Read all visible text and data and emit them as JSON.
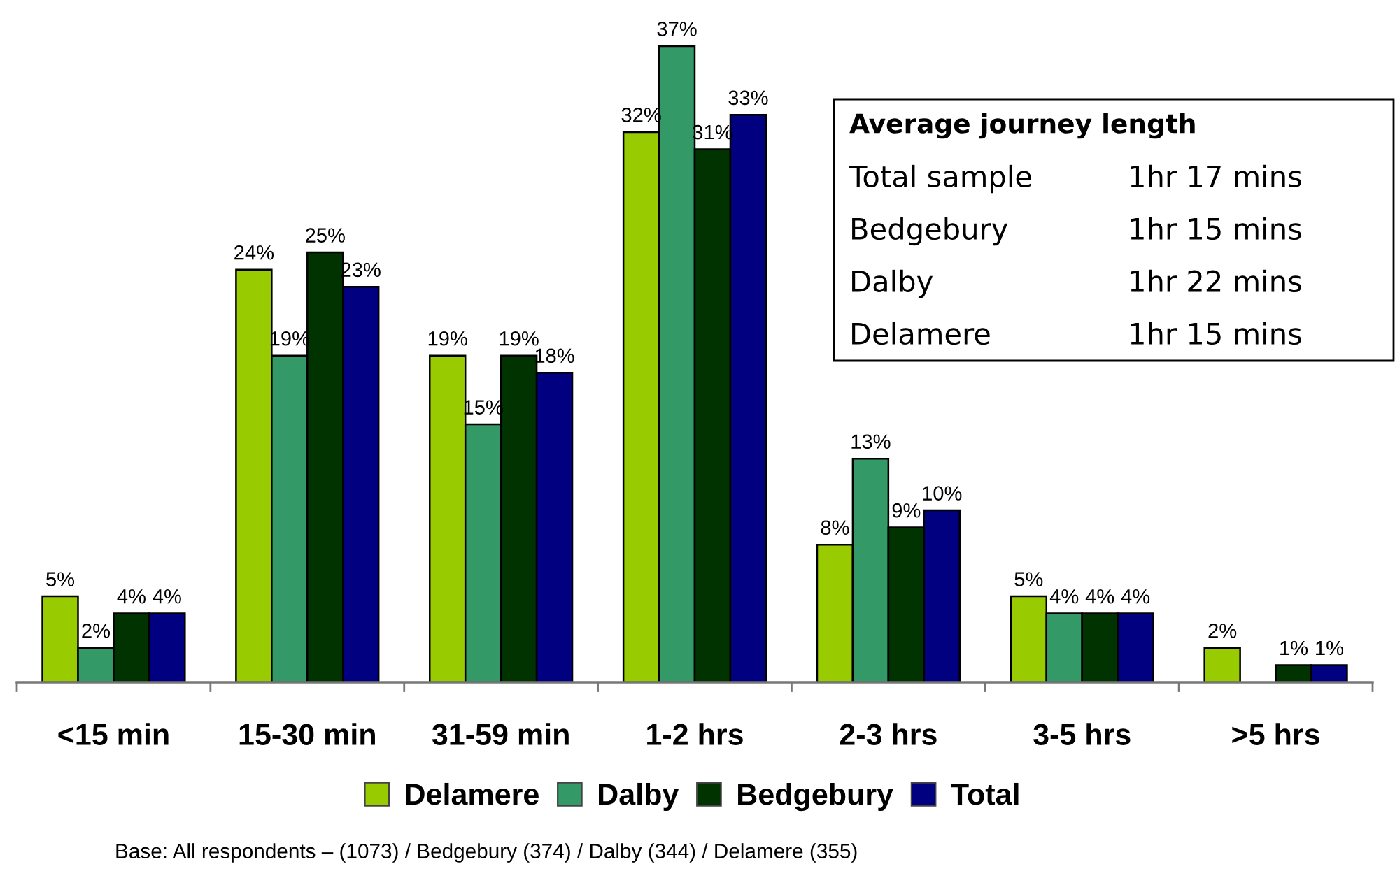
{
  "chart_data": {
    "type": "bar",
    "categories": [
      "<15 min",
      "15-30 min",
      "31-59 min",
      "1-2 hrs",
      "2-3 hrs",
      "3-5 hrs",
      ">5 hrs"
    ],
    "series": [
      {
        "name": "Delamere",
        "color": "#99cc00",
        "values": [
          5,
          24,
          19,
          32,
          8,
          5,
          2
        ],
        "value_labels": [
          "5%",
          "24%",
          "19%",
          "32%",
          "8%",
          "5%",
          "2%"
        ]
      },
      {
        "name": "Dalby",
        "color": "#339966",
        "values": [
          2,
          19,
          15,
          37,
          13,
          4,
          null
        ],
        "value_labels": [
          "2%",
          "19%",
          "15%",
          "37%",
          "13%",
          "4%",
          null
        ]
      },
      {
        "name": "Bedgebury",
        "color": "#003300",
        "values": [
          4,
          25,
          19,
          31,
          9,
          4,
          1
        ],
        "value_labels": [
          "4%",
          "25%",
          "19%",
          "31%",
          "9%",
          "4%",
          "1%"
        ]
      },
      {
        "name": "Total",
        "color": "#000080",
        "values": [
          4,
          23,
          18,
          33,
          10,
          4,
          1
        ],
        "value_labels": [
          "4%",
          "23%",
          "18%",
          "33%",
          "10%",
          "4%",
          "1%"
        ]
      }
    ],
    "legend": "bottom",
    "annotations": [
      "Average journey length",
      "Total sample",
      "1hr 17 mins",
      "Bedgebury",
      "1hr 15 mins",
      "Dalby",
      "1hr 22 mins",
      "Delamere",
      "1hr 15 mins",
      "Base: All respondents – (1073) / Bedgebury (374) / Dalby (344) / Delamere (355)"
    ]
  }
}
